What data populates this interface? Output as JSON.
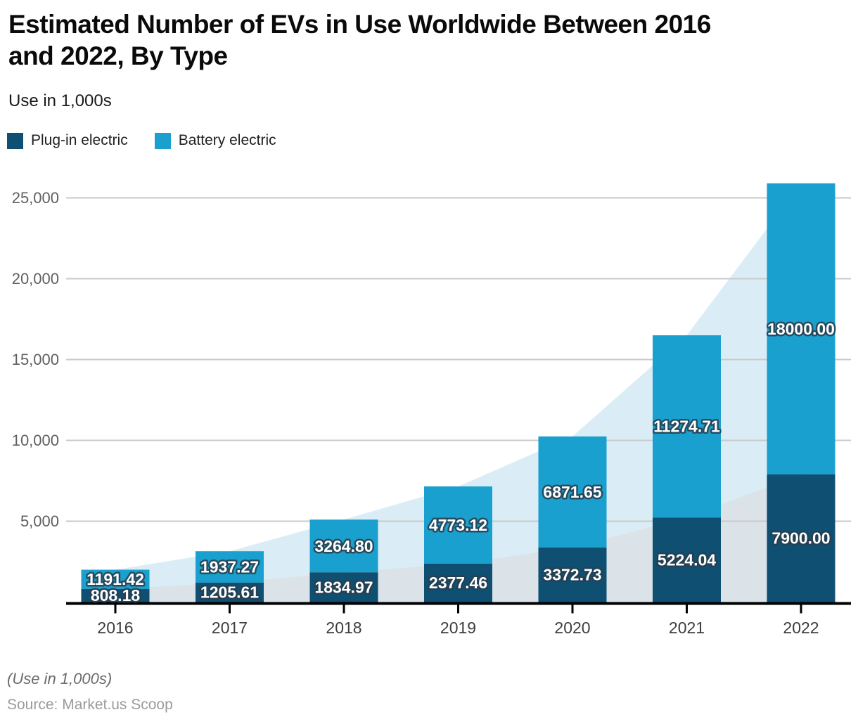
{
  "header": {
    "title": "Estimated Number of EVs in Use Worldwide Between 2016 and 2022, By Type",
    "title_lines": [
      "Estimated Number of EVs in Use Worldwide Between 2016",
      "and 2022, By Type"
    ],
    "subtitle": "Use in 1,000s"
  },
  "legend": [
    {
      "label": "Plug-in electric",
      "color": "#0e4f72"
    },
    {
      "label": "Battery electric",
      "color": "#1aa0ce"
    }
  ],
  "footer": {
    "note": "(Use in 1,000s)",
    "source": "Source: Market.us Scoop"
  },
  "chart_data": {
    "type": "bar",
    "stacked": true,
    "title": "Estimated Number of EVs in Use Worldwide Between 2016 and 2022, By Type",
    "ylabel": "Use in 1,000s",
    "xlabel": "",
    "legend_position": "top",
    "grid": true,
    "background_area_series": true,
    "categories": [
      "2016",
      "2017",
      "2018",
      "2019",
      "2020",
      "2021",
      "2022"
    ],
    "series": [
      {
        "name": "Plug-in electric",
        "color": "#0e4f72",
        "area_color": "#dbe3e9",
        "values": [
          808.18,
          1205.61,
          1834.97,
          2377.46,
          3372.73,
          5224.04,
          7900.0
        ],
        "labels": [
          "808.18",
          "1205.61",
          "1834.97",
          "2377.46",
          "3372.73",
          "5224.04",
          "7900.00"
        ]
      },
      {
        "name": "Battery electric",
        "color": "#1aa0ce",
        "area_color": "#daedf7",
        "values": [
          1191.42,
          1937.27,
          3264.8,
          4773.12,
          6871.65,
          11274.71,
          18000.0
        ],
        "labels": [
          "1191.42",
          "1937.27",
          "3264.80",
          "4773.12",
          "6871.65",
          "11274.71",
          "18000.00"
        ]
      }
    ],
    "totals": [
      1999.6,
      3142.88,
      5099.77,
      7150.58,
      10244.38,
      16498.75,
      25900.0
    ],
    "y_ticks": [
      {
        "value": 5000,
        "label": "5,000"
      },
      {
        "value": 10000,
        "label": "10,000"
      },
      {
        "value": 15000,
        "label": "15,000"
      },
      {
        "value": 20000,
        "label": "20,000"
      },
      {
        "value": 25000,
        "label": "25,000"
      }
    ],
    "ylim": [
      0,
      26800
    ],
    "grid_color": "#c9c9c9",
    "axis_color": "#000000",
    "y_tick_label_color": "#5f5f5f",
    "x_tick_label_color": "#3d3d3d",
    "value_label_color": "#ffffff"
  }
}
